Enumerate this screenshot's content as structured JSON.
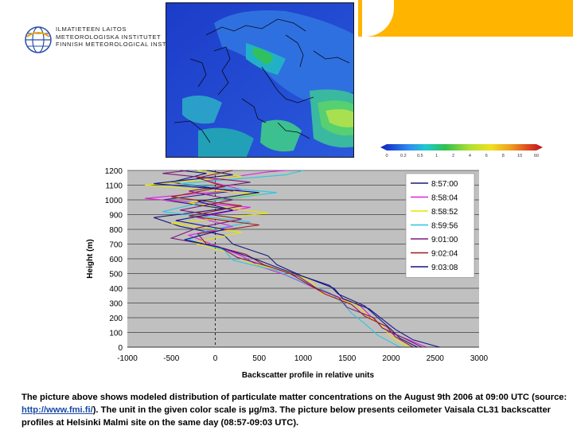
{
  "logo": {
    "line1": "ILMATIETEEN LAITOS",
    "line2": "METEOROLOGISKA INSTITUTET",
    "line3": "FINNISH METEOROLOGICAL INST"
  },
  "colors": {
    "banner": "#ffb400",
    "plot_bg": "#c0c0c0",
    "link": "#1b4aa6"
  },
  "color_scale": {
    "ticks": [
      "0",
      "0.2",
      "0.5",
      "1",
      "2",
      "4",
      "6",
      "8",
      "10",
      "60"
    ]
  },
  "caption": {
    "before": "The picture above shows modeled distribution of particulate matter concentrations on the August 9th 2006 at 09:00 UTC (source: ",
    "link": "http://www.fmi.fi/",
    "after": "). The unit in the given color scale is µg/m3. The picture below presents ceilometer Vaisala CL31 backscatter profiles at Helsinki Malmi site on the same day (08:57-09:03 UTC)."
  },
  "chart_data": {
    "type": "line",
    "xlabel": "Backscatter profile in relative units",
    "ylabel": "Height (m)",
    "xlim": [
      -1000,
      3000
    ],
    "ylim": [
      0,
      1200
    ],
    "xticks": [
      "-1000",
      "-500",
      "0",
      "500",
      "1000",
      "1500",
      "2000",
      "2500",
      "3000"
    ],
    "yticks": [
      "0",
      "100",
      "200",
      "300",
      "400",
      "500",
      "600",
      "700",
      "800",
      "900",
      "1000",
      "1100",
      "1200"
    ],
    "grid": "horizontal",
    "legend_position": "top-right",
    "series": [
      {
        "name": "8:57:00",
        "color": "#1a1a7a",
        "points": [
          [
            2300,
            0
          ],
          [
            2100,
            60
          ],
          [
            2000,
            120
          ],
          [
            1850,
            200
          ],
          [
            1700,
            280
          ],
          [
            1400,
            360
          ],
          [
            1300,
            420
          ],
          [
            1000,
            480
          ],
          [
            700,
            560
          ],
          [
            600,
            620
          ],
          [
            200,
            700
          ],
          [
            100,
            760
          ],
          [
            -400,
            820
          ],
          [
            -700,
            880
          ],
          [
            100,
            940
          ],
          [
            -600,
            1000
          ],
          [
            200,
            1060
          ],
          [
            -500,
            1120
          ],
          [
            -100,
            1180
          ],
          [
            -400,
            1200
          ]
        ]
      },
      {
        "name": "8:58:04",
        "color": "#e020e0",
        "points": [
          [
            2400,
            0
          ],
          [
            2200,
            50
          ],
          [
            1950,
            110
          ],
          [
            1800,
            190
          ],
          [
            1650,
            280
          ],
          [
            1350,
            350
          ],
          [
            1100,
            410
          ],
          [
            800,
            490
          ],
          [
            500,
            550
          ],
          [
            300,
            620
          ],
          [
            0,
            690
          ],
          [
            -300,
            760
          ],
          [
            200,
            820
          ],
          [
            -200,
            880
          ],
          [
            400,
            950
          ],
          [
            -800,
            1010
          ],
          [
            300,
            1070
          ],
          [
            -100,
            1130
          ],
          [
            600,
            1190
          ],
          [
            800,
            1200
          ]
        ]
      },
      {
        "name": "8:58:52",
        "color": "#e6e600",
        "points": [
          [
            2200,
            0
          ],
          [
            2000,
            70
          ],
          [
            1900,
            140
          ],
          [
            1750,
            210
          ],
          [
            1600,
            290
          ],
          [
            1200,
            370
          ],
          [
            1100,
            440
          ],
          [
            900,
            500
          ],
          [
            400,
            570
          ],
          [
            150,
            640
          ],
          [
            -250,
            710
          ],
          [
            300,
            780
          ],
          [
            -500,
            840
          ],
          [
            600,
            910
          ],
          [
            -300,
            980
          ],
          [
            500,
            1040
          ],
          [
            -800,
            1100
          ],
          [
            300,
            1160
          ],
          [
            -200,
            1200
          ]
        ]
      },
      {
        "name": "8:59:56",
        "color": "#28c8e0",
        "points": [
          [
            2100,
            0
          ],
          [
            1850,
            80
          ],
          [
            1700,
            160
          ],
          [
            1550,
            230
          ],
          [
            1450,
            300
          ],
          [
            1300,
            370
          ],
          [
            1000,
            440
          ],
          [
            700,
            520
          ],
          [
            200,
            590
          ],
          [
            100,
            660
          ],
          [
            -300,
            730
          ],
          [
            -100,
            790
          ],
          [
            400,
            850
          ],
          [
            -600,
            920
          ],
          [
            -100,
            990
          ],
          [
            700,
            1050
          ],
          [
            -400,
            1110
          ],
          [
            800,
            1170
          ],
          [
            1000,
            1200
          ]
        ]
      },
      {
        "name": "9:01:00",
        "color": "#7a1a7a",
        "points": [
          [
            2350,
            0
          ],
          [
            2150,
            60
          ],
          [
            1900,
            130
          ],
          [
            1800,
            200
          ],
          [
            1500,
            270
          ],
          [
            1400,
            340
          ],
          [
            1150,
            400
          ],
          [
            950,
            480
          ],
          [
            650,
            540
          ],
          [
            250,
            610
          ],
          [
            50,
            680
          ],
          [
            -500,
            740
          ],
          [
            -200,
            810
          ],
          [
            300,
            870
          ],
          [
            -400,
            930
          ],
          [
            200,
            1000
          ],
          [
            -300,
            1060
          ],
          [
            400,
            1120
          ],
          [
            -600,
            1180
          ],
          [
            -300,
            1200
          ]
        ]
      },
      {
        "name": "9:02:04",
        "color": "#a01a1a",
        "points": [
          [
            2250,
            0
          ],
          [
            2050,
            70
          ],
          [
            1950,
            140
          ],
          [
            1700,
            210
          ],
          [
            1550,
            290
          ],
          [
            1250,
            360
          ],
          [
            1050,
            430
          ],
          [
            850,
            500
          ],
          [
            550,
            560
          ],
          [
            350,
            630
          ],
          [
            -100,
            700
          ],
          [
            -200,
            770
          ],
          [
            500,
            830
          ],
          [
            -300,
            890
          ],
          [
            300,
            960
          ],
          [
            -500,
            1020
          ],
          [
            100,
            1090
          ],
          [
            -200,
            1150
          ],
          [
            200,
            1200
          ]
        ]
      },
      {
        "name": "9:03:08",
        "color": "#14148c",
        "points": [
          [
            2550,
            0
          ],
          [
            2250,
            50
          ],
          [
            2050,
            120
          ],
          [
            1900,
            190
          ],
          [
            1750,
            260
          ],
          [
            1450,
            330
          ],
          [
            1350,
            400
          ],
          [
            1050,
            470
          ],
          [
            750,
            530
          ],
          [
            450,
            600
          ],
          [
            100,
            670
          ],
          [
            -350,
            730
          ],
          [
            100,
            800
          ],
          [
            -450,
            860
          ],
          [
            200,
            930
          ],
          [
            -200,
            990
          ],
          [
            500,
            1050
          ],
          [
            -700,
            1110
          ],
          [
            200,
            1170
          ],
          [
            -100,
            1200
          ]
        ]
      }
    ]
  }
}
